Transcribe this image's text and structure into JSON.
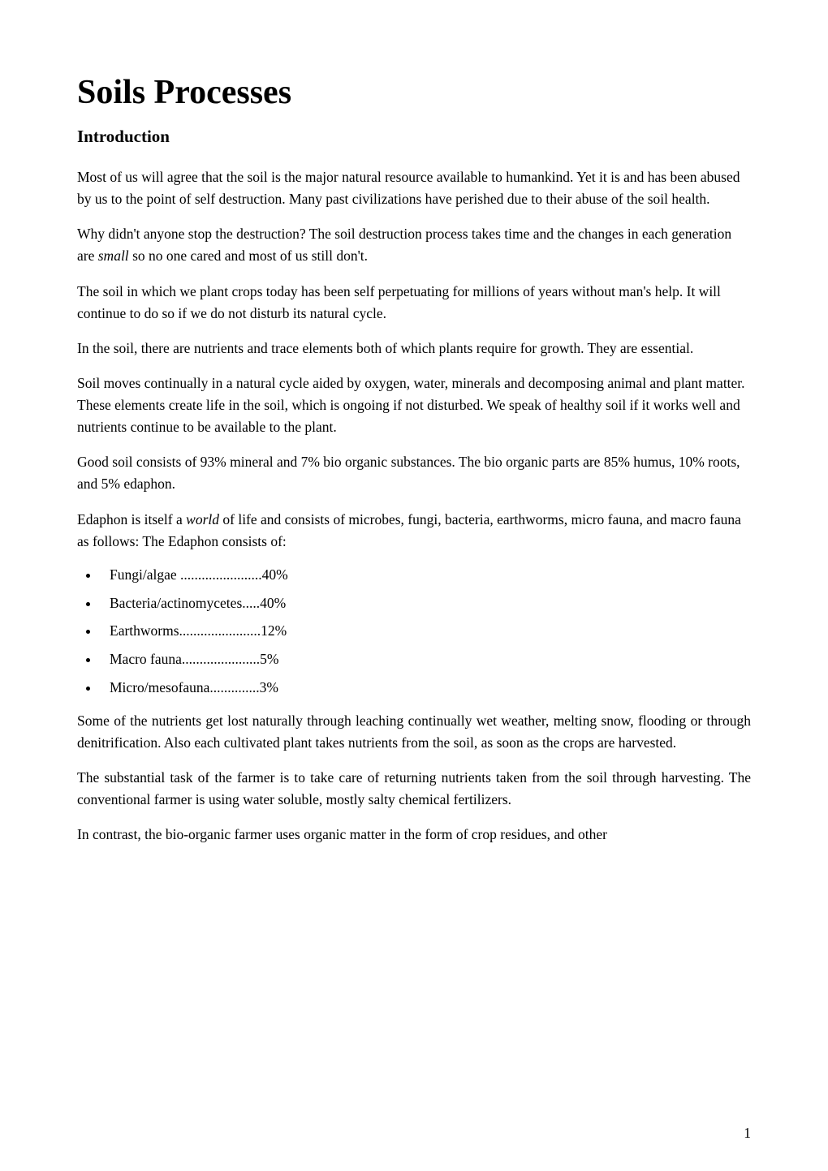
{
  "document": {
    "title": "Soils Processes",
    "subtitle": "Introduction",
    "page_number": "1",
    "background_color": "#ffffff",
    "text_color": "#000000",
    "font_family": "Times New Roman",
    "title_fontsize": 42,
    "subtitle_fontsize": 21,
    "body_fontsize": 17.5
  },
  "paragraphs": {
    "p1": "Most of us will agree that the soil is the major natural resource available to humankind. Yet it is and has been abused by us to the point of self destruction. Many past civilizations have perished due to their abuse of the soil health.",
    "p2_before": "Why didn't anyone stop the destruction? The soil destruction process takes time and the changes in each generation are ",
    "p2_italic": "small",
    "p2_after": " so no one cared and most of us still don't.",
    "p3": "The soil in which we plant crops today has been self perpetuating for millions of years without man's help. It will continue to do so if we do not disturb its natural cycle.",
    "p4": "In the soil, there are nutrients and trace elements both of which plants require for growth. They are essential.",
    "p5": "Soil moves continually in a natural cycle aided by oxygen, water, minerals and decomposing animal and plant matter. These elements create life in the soil, which is ongoing if not disturbed. We speak of healthy soil if it works well and nutrients continue to be available to the plant.",
    "p6": "Good soil consists of 93% mineral and 7% bio organic substances. The bio organic parts are 85% humus, 10% roots, and 5% edaphon.",
    "p7_before": "Edaphon is itself a ",
    "p7_italic": "world",
    "p7_after": " of life and consists of microbes, fungi, bacteria, earthworms, micro fauna, and macro fauna as follows:  The Edaphon consists of:",
    "p8": "Some of the nutrients get lost naturally through leaching continually wet weather, melting snow, flooding or through denitrification. Also each cultivated plant takes nutrients from the soil, as soon as the crops are harvested.",
    "p9": "The substantial task of the farmer is to take care of returning nutrients taken from the soil through harvesting. The conventional farmer is using water soluble, mostly salty chemical fertilizers.",
    "p10": "In contrast, the bio-organic farmer uses organic matter in the form of crop residues, and other"
  },
  "edaphon_list": {
    "item1": "Fungi/algae .......................40%",
    "item2": "Bacteria/actinomycetes.....40%",
    "item3": "Earthworms.......................12%",
    "item4": "Macro fauna......................5%",
    "item5": "Micro/mesofauna..............3%"
  },
  "edaphon_data": {
    "fungi_algae_pct": 40,
    "bacteria_actinomycetes_pct": 40,
    "earthworms_pct": 12,
    "macro_fauna_pct": 5,
    "micro_mesofauna_pct": 3
  },
  "soil_composition": {
    "mineral_pct": 93,
    "bio_organic_pct": 7,
    "humus_pct": 85,
    "roots_pct": 10,
    "edaphon_pct": 5
  }
}
